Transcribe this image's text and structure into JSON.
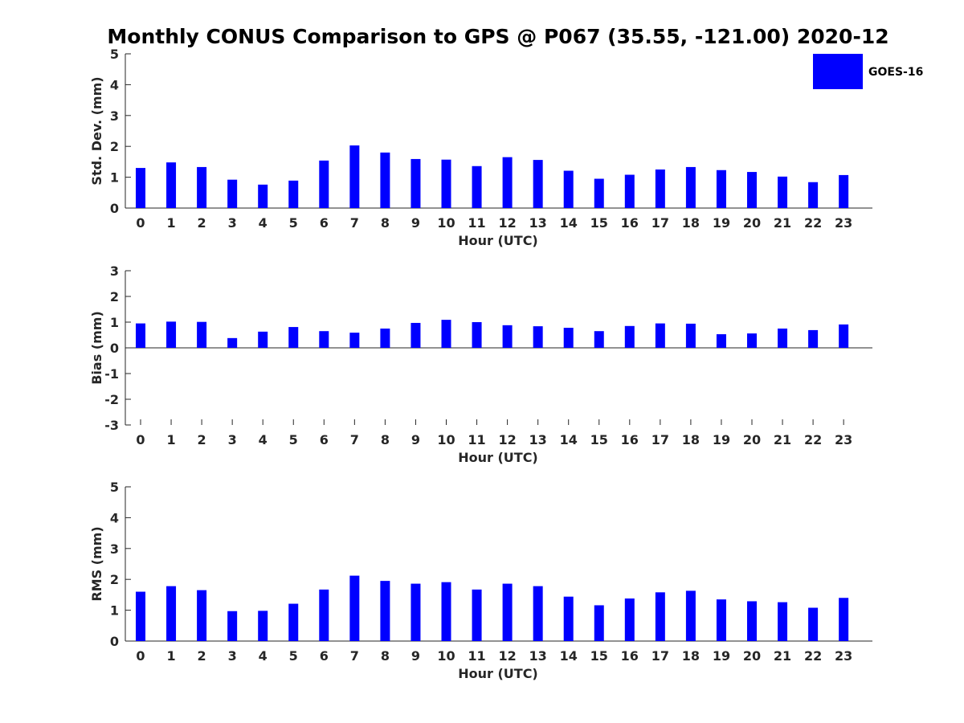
{
  "figure": {
    "title": "Monthly CONUS Comparison to GPS @ P067 (35.55, -121.00) 2020-12"
  },
  "legend": {
    "label": "GOES-16",
    "color": "#0000ff",
    "placement": "top-right"
  },
  "chart_data": [
    {
      "type": "bar",
      "xlabel": "Hour (UTC)",
      "ylabel": "Std. Dev. (mm)",
      "ylim": [
        0,
        5
      ],
      "yticks": [
        0,
        1,
        2,
        3,
        4,
        5
      ],
      "categories": [
        "0",
        "1",
        "2",
        "3",
        "4",
        "5",
        "6",
        "7",
        "8",
        "9",
        "10",
        "11",
        "12",
        "13",
        "14",
        "15",
        "16",
        "17",
        "18",
        "19",
        "20",
        "21",
        "22",
        "23"
      ],
      "series": [
        {
          "name": "GOES-16",
          "color": "#0000ff",
          "values": [
            1.3,
            1.48,
            1.33,
            0.92,
            0.76,
            0.89,
            1.54,
            2.03,
            1.8,
            1.59,
            1.57,
            1.36,
            1.65,
            1.56,
            1.21,
            0.95,
            1.08,
            1.25,
            1.33,
            1.23,
            1.17,
            1.02,
            0.84,
            1.07
          ]
        }
      ]
    },
    {
      "type": "bar",
      "xlabel": "Hour (UTC)",
      "ylabel": "Bias (mm)",
      "ylim": [
        -3,
        3
      ],
      "yticks": [
        -3,
        -2,
        -1,
        0,
        1,
        2,
        3
      ],
      "categories": [
        "0",
        "1",
        "2",
        "3",
        "4",
        "5",
        "6",
        "7",
        "8",
        "9",
        "10",
        "11",
        "12",
        "13",
        "14",
        "15",
        "16",
        "17",
        "18",
        "19",
        "20",
        "21",
        "22",
        "23"
      ],
      "series": [
        {
          "name": "GOES-16",
          "color": "#0000ff",
          "values": [
            0.95,
            1.02,
            1.01,
            0.38,
            0.63,
            0.81,
            0.65,
            0.59,
            0.75,
            0.97,
            1.09,
            1.0,
            0.88,
            0.84,
            0.78,
            0.65,
            0.85,
            0.95,
            0.94,
            0.53,
            0.56,
            0.75,
            0.69,
            0.91
          ]
        }
      ]
    },
    {
      "type": "bar",
      "xlabel": "Hour (UTC)",
      "ylabel": "RMS (mm)",
      "ylim": [
        0,
        5
      ],
      "yticks": [
        0,
        1,
        2,
        3,
        4,
        5
      ],
      "categories": [
        "0",
        "1",
        "2",
        "3",
        "4",
        "5",
        "6",
        "7",
        "8",
        "9",
        "10",
        "11",
        "12",
        "13",
        "14",
        "15",
        "16",
        "17",
        "18",
        "19",
        "20",
        "21",
        "22",
        "23"
      ],
      "series": [
        {
          "name": "GOES-16",
          "color": "#0000ff",
          "values": [
            1.6,
            1.78,
            1.65,
            0.97,
            0.98,
            1.21,
            1.67,
            2.12,
            1.95,
            1.86,
            1.91,
            1.67,
            1.86,
            1.78,
            1.44,
            1.16,
            1.38,
            1.58,
            1.63,
            1.35,
            1.29,
            1.26,
            1.08,
            1.4
          ]
        }
      ]
    }
  ]
}
